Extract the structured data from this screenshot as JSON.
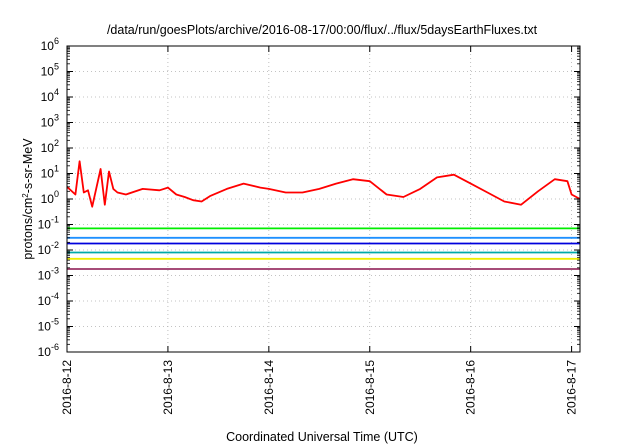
{
  "chart_data": {
    "type": "line",
    "title": "/data/run/goesPlots/archive/2016-08-17/00:00/flux/../flux/5daysEarthFluxes.txt",
    "xlabel": "Coordinated Universal Time (UTC)",
    "ylabel": "protons/cm2-s-sr-MeV",
    "ylabel_parts": {
      "pre": "protons/cm",
      "sup": "2",
      "post": "-s-sr-MeV"
    },
    "yscale": "log",
    "ylim": [
      1e-06,
      1000000.0
    ],
    "xlim": [
      "2016-08-12",
      "2016-08-17 02:00"
    ],
    "grid": true,
    "x_ticks": [
      "2016-8-12",
      "2016-8-13",
      "2016-8-14",
      "2016-8-15",
      "2016-8-16",
      "2016-8-17"
    ],
    "y_ticks": [
      {
        "base": "10",
        "exp": "-6"
      },
      {
        "base": "10",
        "exp": "-5"
      },
      {
        "base": "10",
        "exp": "-4"
      },
      {
        "base": "10",
        "exp": "-3"
      },
      {
        "base": "10",
        "exp": "-2"
      },
      {
        "base": "10",
        "exp": "-1"
      },
      {
        "base": "10",
        "exp": "0"
      },
      {
        "base": "10",
        "exp": "1"
      },
      {
        "base": "10",
        "exp": "2"
      },
      {
        "base": "10",
        "exp": "3"
      },
      {
        "base": "10",
        "exp": "4"
      },
      {
        "base": "10",
        "exp": "5"
      },
      {
        "base": "10",
        "exp": "6"
      }
    ],
    "series": [
      {
        "color": "#ff0000",
        "x": [
          "2016-08-12 00:00",
          "2016-08-12 02:00",
          "2016-08-12 03:00",
          "2016-08-12 04:00",
          "2016-08-12 05:00",
          "2016-08-12 06:00",
          "2016-08-12 08:00",
          "2016-08-12 09:00",
          "2016-08-12 10:00",
          "2016-08-12 11:00",
          "2016-08-12 12:00",
          "2016-08-12 14:00",
          "2016-08-12 18:00",
          "2016-08-12 22:00",
          "2016-08-13 00:00",
          "2016-08-13 02:00",
          "2016-08-13 04:00",
          "2016-08-13 06:00",
          "2016-08-13 08:00",
          "2016-08-13 10:00",
          "2016-08-13 14:00",
          "2016-08-13 18:00",
          "2016-08-13 22:00",
          "2016-08-14 00:00",
          "2016-08-14 04:00",
          "2016-08-14 08:00",
          "2016-08-14 12:00",
          "2016-08-14 16:00",
          "2016-08-14 20:00",
          "2016-08-15 00:00",
          "2016-08-15 04:00",
          "2016-08-15 08:00",
          "2016-08-15 12:00",
          "2016-08-15 16:00",
          "2016-08-15 20:00",
          "2016-08-16 00:00",
          "2016-08-16 04:00",
          "2016-08-16 08:00",
          "2016-08-16 12:00",
          "2016-08-16 16:00",
          "2016-08-16 20:00",
          "2016-08-16 23:00",
          "2016-08-17 00:00",
          "2016-08-17 02:00"
        ],
        "y": [
          3,
          1.5,
          30,
          1.8,
          2.2,
          0.5,
          15,
          0.6,
          12,
          2.5,
          1.8,
          1.5,
          2.5,
          2.2,
          2.8,
          1.5,
          1.2,
          0.9,
          0.8,
          1.3,
          2.5,
          4,
          2.8,
          2.5,
          1.8,
          1.8,
          2.5,
          4,
          6,
          5,
          1.5,
          1.2,
          2.5,
          7,
          9,
          4,
          1.8,
          0.8,
          0.6,
          2,
          6,
          5,
          1.5,
          1.0
        ]
      },
      {
        "color": "#00ee00",
        "x": [
          "2016-08-12 00:00",
          "2016-08-17 02:00"
        ],
        "y": [
          0.07,
          0.07
        ]
      },
      {
        "color": "#1e90ff",
        "x": [
          "2016-08-12 00:00",
          "2016-08-17 02:00"
        ],
        "y": [
          0.03,
          0.03
        ]
      },
      {
        "color": "#0000dd",
        "x": [
          "2016-08-12 00:00",
          "2016-08-17 02:00"
        ],
        "y": [
          0.018,
          0.018
        ]
      },
      {
        "color": "#00aaaa",
        "x": [
          "2016-08-12 00:00",
          "2016-08-17 02:00"
        ],
        "y": [
          0.008,
          0.008
        ]
      },
      {
        "color": "#eeee00",
        "x": [
          "2016-08-12 00:00",
          "2016-08-17 02:00"
        ],
        "y": [
          0.0045,
          0.0045
        ]
      },
      {
        "color": "#993366",
        "x": [
          "2016-08-12 00:00",
          "2016-08-17 02:00"
        ],
        "y": [
          0.0018,
          0.0018
        ]
      }
    ]
  }
}
